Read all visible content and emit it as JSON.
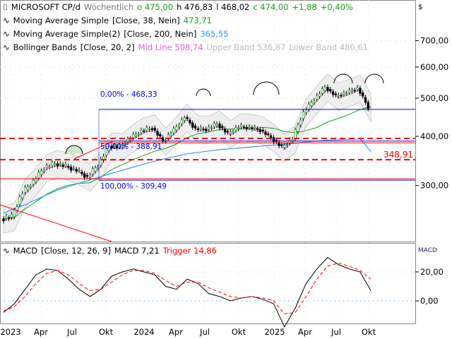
{
  "header": {
    "symbol": "MICROSOFT CP/d",
    "interval": "Wöchentlich",
    "open": "o 475,00",
    "high": "h 476,83",
    "low": "l 468,02",
    "close": "c 474,00",
    "change": "+1,88",
    "change_pct": "+0,40%"
  },
  "indicators": [
    {
      "name": "Moving Average Simple",
      "params": "[Close, 38, Nein]",
      "value": "473,71",
      "color": "#1a9a1a"
    },
    {
      "name": "Moving Average Simple(2)",
      "params": "[Close, 200, Nein]",
      "value": "365,55",
      "color": "#3399ff"
    },
    {
      "name": "Bollinger Bands",
      "params": "[Close, 20, 2]",
      "mid": "Mid Line 508,74",
      "upper": "Upper Band 536,87",
      "lower": "Lower Band 480,61"
    }
  ],
  "fib": {
    "level0": "0,00% - 468,33",
    "level50": "50,00% - 388,91",
    "level100": "100,00% - 309,49"
  },
  "support_label": "348,91",
  "macd_legend": {
    "name": "MACD",
    "params": "[Close, 12, 26, 9]",
    "macd": "MACD 7,21",
    "trigger": "Trigger 14,86"
  },
  "price_axis": {
    "currency": "$",
    "ticks": [
      "700,00",
      "600,00",
      "500,00",
      "400,00",
      "300,00"
    ]
  },
  "macd_axis": {
    "title": "MACD",
    "ticks": [
      "20,00",
      "0,00"
    ]
  },
  "time_axis": [
    "2023",
    "Apr",
    "Jul",
    "Okt",
    "2024",
    "Apr",
    "Jul",
    "Okt",
    "2025",
    "Apr",
    "Jul",
    "Okt"
  ],
  "chart_data": {
    "type": "line",
    "title": "MICROSOFT CP/d Wöchentlich",
    "x": [
      "2023-01",
      "2023-02",
      "2023-03",
      "2023-04",
      "2023-05",
      "2023-06",
      "2023-07",
      "2023-08",
      "2023-09",
      "2023-10",
      "2023-11",
      "2023-12",
      "2024-01",
      "2024-02",
      "2024-03",
      "2024-04",
      "2024-05",
      "2024-06",
      "2024-07",
      "2024-08",
      "2024-09",
      "2024-10",
      "2024-11",
      "2024-12",
      "2025-01",
      "2025-02",
      "2025-03",
      "2025-04",
      "2025-05",
      "2025-06",
      "2025-07",
      "2025-08",
      "2025-09",
      "2025-10",
      "2025-11"
    ],
    "close": [
      247,
      250,
      288,
      307,
      333,
      341,
      336,
      328,
      315,
      338,
      378,
      376,
      397,
      413,
      420,
      389,
      415,
      447,
      418,
      417,
      430,
      406,
      423,
      421,
      415,
      397,
      375,
      395,
      460,
      497,
      533,
      506,
      517,
      530,
      474
    ],
    "sma200": [
      255,
      262,
      268,
      276,
      284,
      292,
      298,
      304,
      310,
      316,
      322,
      328,
      334,
      340,
      346,
      351,
      356,
      361,
      364,
      367,
      370,
      372,
      374,
      376,
      378,
      380,
      382,
      384,
      387,
      389,
      391,
      392,
      393,
      394,
      366
    ],
    "macd": [
      -8,
      -2,
      8,
      18,
      22,
      21,
      15,
      8,
      3,
      8,
      17,
      20,
      22,
      20,
      18,
      10,
      8,
      15,
      12,
      5,
      3,
      0,
      2,
      3,
      1,
      -2,
      -18,
      -5,
      12,
      22,
      30,
      25,
      22,
      20,
      7
    ],
    "trigger": [
      -7,
      -4,
      3,
      12,
      19,
      21,
      18,
      12,
      7,
      8,
      13,
      18,
      21,
      21,
      19,
      14,
      10,
      13,
      13,
      9,
      6,
      3,
      2,
      3,
      2,
      0,
      -9,
      -8,
      3,
      15,
      24,
      26,
      24,
      21,
      15
    ],
    "price_ylim": [
      230,
      760
    ],
    "macd_ylim": [
      -15,
      32
    ]
  }
}
